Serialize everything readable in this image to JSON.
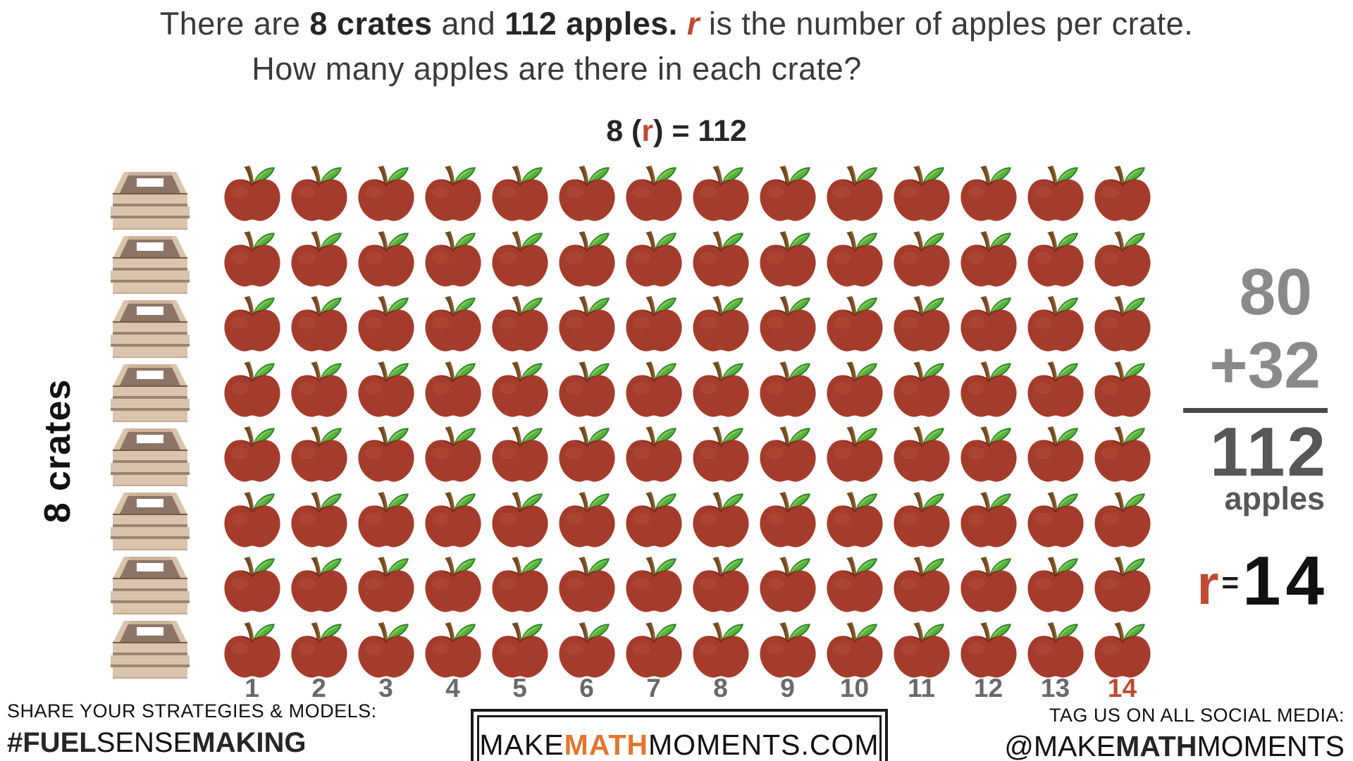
{
  "title": {
    "line1_parts": [
      {
        "text": "There are ",
        "style": "regular"
      },
      {
        "text": "8 crates",
        "style": "bold"
      },
      {
        "text": " and ",
        "style": "regular"
      },
      {
        "text": "112 apples.",
        "style": "bold"
      },
      {
        "text": " ",
        "style": "regular"
      },
      {
        "text": "r",
        "style": "red-bold-italic"
      },
      {
        "text": " is the number of apples per crate.",
        "style": "regular"
      }
    ],
    "line2": "How many apples are there in each crate?",
    "equation_parts": [
      {
        "text": "8 (",
        "style": "bold"
      },
      {
        "text": "r",
        "style": "red-bold"
      },
      {
        "text": ") = 112",
        "style": "bold"
      }
    ]
  },
  "diagram": {
    "left_label": "8 crates",
    "rows": 8,
    "columns": 14,
    "total_apples": 112,
    "crate_count": 8,
    "column_numbers": [
      1,
      2,
      3,
      4,
      5,
      6,
      7,
      8,
      9,
      10,
      11,
      12,
      13,
      14
    ],
    "accent_number": 14
  },
  "right_panel": {
    "addend1": "80",
    "addend2": "+32",
    "sum": "112",
    "sum_unit": "apples",
    "result": {
      "variable": "r",
      "equals": "=",
      "value": "14"
    }
  },
  "footer": {
    "left": {
      "prompt": "SHARE YOUR STRATEGIES & MODELS:",
      "hashtag_parts": [
        {
          "text": "#FUEL",
          "style": "bold"
        },
        {
          "text": "SENSE",
          "style": "regular"
        },
        {
          "text": "MAKING",
          "style": "bold"
        }
      ]
    },
    "center": {
      "site_parts": [
        {
          "text": "MAKE",
          "style": "regular"
        },
        {
          "text": "MATH",
          "style": "orange-bold"
        },
        {
          "text": "MOMENTS.COM",
          "style": "regular"
        }
      ]
    },
    "right": {
      "prompt": "TAG US ON ALL SOCIAL MEDIA:",
      "handle_parts": [
        {
          "text": "@MAKE",
          "style": "regular"
        },
        {
          "text": "MATH",
          "style": "bold"
        },
        {
          "text": "MOMENTS",
          "style": "regular"
        }
      ]
    }
  },
  "icons": {
    "apple": "apple-icon",
    "crate": "crate-icon"
  },
  "colors": {
    "accent_red": "#be4a2f",
    "accent_orange": "#e2762f",
    "addend_gray": "#8a8a8a",
    "sum_gray": "#575757",
    "number_gray": "#696969",
    "apple_body": "#a53c2b",
    "leaf_green": "#57b33e",
    "crate_wood": "#dac5ac",
    "crate_interior": "#8c7566"
  }
}
